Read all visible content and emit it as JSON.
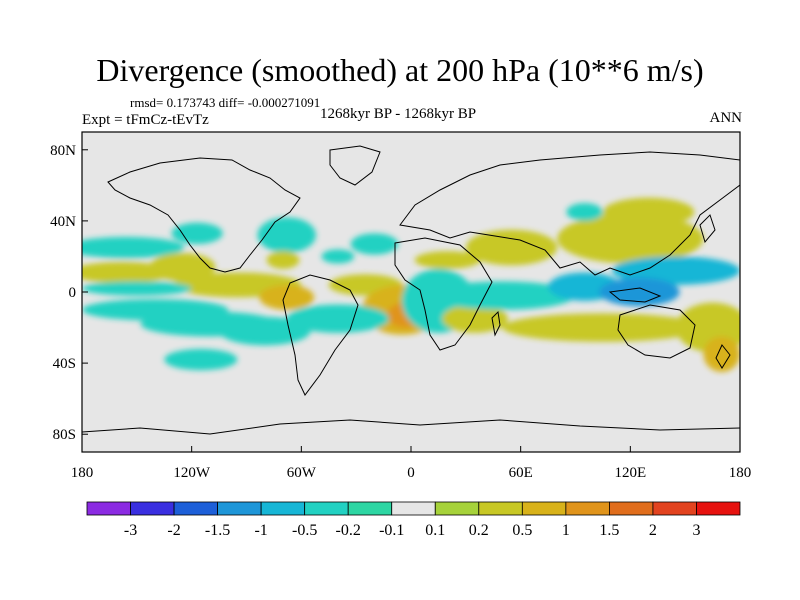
{
  "chart_data": {
    "type": "heatmap",
    "title": "Divergence (smoothed) at 200 hPa (10**6 m/s)",
    "stats_label": "rmsd= 0.173743  diff= -0.000271091",
    "experiment_label": "Expt = tFmCz-tEvTz",
    "period_label": "1268kyr BP - 1268kyr BP",
    "season_label": "ANN",
    "x_axis": {
      "range": [
        -180,
        180
      ],
      "ticks": [
        {
          "value": -180,
          "label": "180"
        },
        {
          "value": -120,
          "label": "120W"
        },
        {
          "value": -60,
          "label": "60W"
        },
        {
          "value": 0,
          "label": "0"
        },
        {
          "value": 60,
          "label": "60E"
        },
        {
          "value": 120,
          "label": "120E"
        },
        {
          "value": 180,
          "label": "180"
        }
      ]
    },
    "y_axis": {
      "range": [
        -90,
        90
      ],
      "ticks": [
        {
          "value": 80,
          "label": "80N"
        },
        {
          "value": 40,
          "label": "40N"
        },
        {
          "value": 0,
          "label": "0"
        },
        {
          "value": -40,
          "label": "40S"
        },
        {
          "value": -80,
          "label": "80S"
        }
      ]
    },
    "colorbar": {
      "colors": [
        "#8b2be2",
        "#3a2fe0",
        "#1d5fd8",
        "#1e96d8",
        "#17b6d6",
        "#22d1c2",
        "#2dd6a3",
        "#e6e6e6",
        "#a6d23a",
        "#c8c825",
        "#d8b21a",
        "#e0941b",
        "#e06d1c",
        "#e2431f",
        "#e6120f"
      ],
      "labels": [
        "-3",
        "-2",
        "-1.5",
        "-1",
        "-0.5",
        "-0.2",
        "-0.1",
        "0.1",
        "0.2",
        "0.5",
        "1",
        "1.5",
        "2",
        "3"
      ]
    },
    "field_regions": [
      {
        "lon": -156,
        "lat": 25,
        "rlon": 32,
        "rlat": 6,
        "level": -0.3
      },
      {
        "lon": -117,
        "lat": 33,
        "rlon": 14,
        "rlat": 6,
        "level": -0.3
      },
      {
        "lon": -68,
        "lat": 32,
        "rlon": 16,
        "rlat": 10,
        "level": -0.3
      },
      {
        "lon": -40,
        "lat": 20,
        "rlon": 9,
        "rlat": 4,
        "level": -0.2
      },
      {
        "lon": -158,
        "lat": 11,
        "rlon": 28,
        "rlat": 6,
        "level": 0.3
      },
      {
        "lon": -125,
        "lat": 14,
        "rlon": 18,
        "rlat": 8,
        "level": 0.3
      },
      {
        "lon": -95,
        "lat": 4,
        "rlon": 35,
        "rlat": 7,
        "level": 0.3
      },
      {
        "lon": -150,
        "lat": 2,
        "rlon": 30,
        "rlat": 4,
        "level": -0.3
      },
      {
        "lon": -140,
        "lat": -10,
        "rlon": 40,
        "rlat": 6,
        "level": -0.3
      },
      {
        "lon": -110,
        "lat": -18,
        "rlon": 38,
        "rlat": 7,
        "level": -0.25
      },
      {
        "lon": -68,
        "lat": -3,
        "rlon": 15,
        "rlat": 7,
        "level": 0.7
      },
      {
        "lon": -70,
        "lat": 18,
        "rlon": 9,
        "rlat": 5,
        "level": 0.4
      },
      {
        "lon": -25,
        "lat": 4,
        "rlon": 20,
        "rlat": 6,
        "level": 0.4
      },
      {
        "lon": -5,
        "lat": -10,
        "rlon": 22,
        "rlat": 14,
        "level": 0.6
      },
      {
        "lon": -3,
        "lat": -13,
        "rlon": 10,
        "rlat": 7,
        "level": 1.2
      },
      {
        "lon": -40,
        "lat": -15,
        "rlon": 28,
        "rlat": 8,
        "level": -0.3
      },
      {
        "lon": -80,
        "lat": -22,
        "rlon": 25,
        "rlat": 8,
        "level": -0.3
      },
      {
        "lon": -115,
        "lat": -38,
        "rlon": 20,
        "rlat": 6,
        "level": -0.2
      },
      {
        "lon": -20,
        "lat": 27,
        "rlon": 13,
        "rlat": 6,
        "level": -0.2
      },
      {
        "lon": 20,
        "lat": 18,
        "rlon": 18,
        "rlat": 5,
        "level": 0.3
      },
      {
        "lon": 15,
        "lat": -5,
        "rlon": 20,
        "rlat": 18,
        "level": -0.2
      },
      {
        "lon": 35,
        "lat": -15,
        "rlon": 18,
        "rlat": 8,
        "level": 0.5
      },
      {
        "lon": 50,
        "lat": -2,
        "rlon": 40,
        "rlat": 8,
        "level": -0.4
      },
      {
        "lon": 95,
        "lat": 3,
        "rlon": 20,
        "rlat": 8,
        "level": -0.6
      },
      {
        "lon": 55,
        "lat": 25,
        "rlon": 25,
        "rlat": 10,
        "level": 0.3
      },
      {
        "lon": 120,
        "lat": 30,
        "rlon": 40,
        "rlat": 14,
        "level": 0.4
      },
      {
        "lon": 145,
        "lat": 12,
        "rlon": 35,
        "rlat": 8,
        "level": -0.7
      },
      {
        "lon": 125,
        "lat": 0,
        "rlon": 22,
        "rlat": 8,
        "level": -1.2
      },
      {
        "lon": 130,
        "lat": 45,
        "rlon": 25,
        "rlat": 8,
        "level": 0.3
      },
      {
        "lon": 105,
        "lat": -20,
        "rlon": 55,
        "rlat": 8,
        "level": 0.4
      },
      {
        "lon": 165,
        "lat": -20,
        "rlon": 20,
        "rlat": 14,
        "level": 0.5
      },
      {
        "lon": 170,
        "lat": -35,
        "rlon": 10,
        "rlat": 10,
        "level": 0.6
      },
      {
        "lon": 95,
        "lat": 45,
        "rlon": 10,
        "rlat": 5,
        "level": -0.2
      }
    ]
  }
}
